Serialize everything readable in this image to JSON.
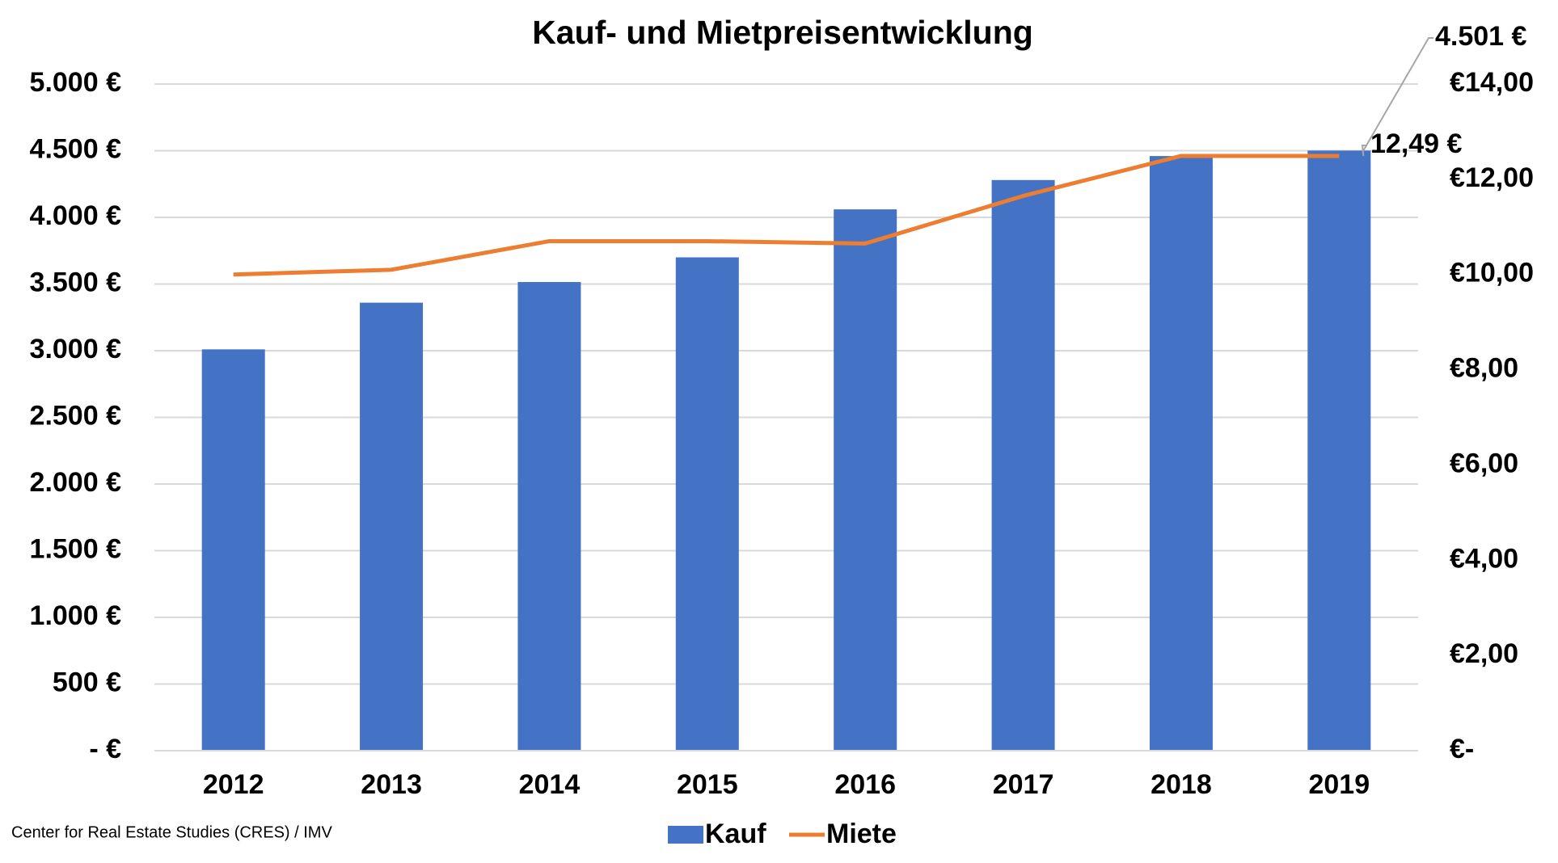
{
  "chart_data": {
    "type": "bar-line",
    "title": "Kauf- und Mietpreisentwicklung",
    "source": "Center for Real Estate Studies (CRES) / IMV",
    "categories": [
      "2012",
      "2013",
      "2014",
      "2015",
      "2016",
      "2017",
      "2018",
      "2019"
    ],
    "series": [
      {
        "name": "Kauf",
        "type": "bar",
        "color": "#4472c4",
        "values": [
          3010,
          3360,
          3515,
          3700,
          4060,
          4280,
          4460,
          4501
        ],
        "value_labels": [
          null,
          null,
          null,
          null,
          null,
          null,
          null,
          "4.501 €"
        ]
      },
      {
        "name": "Miete",
        "type": "line",
        "axis": "y2",
        "color": "#ed7d31",
        "values": [
          10.0,
          10.1,
          10.7,
          10.7,
          10.65,
          11.65,
          12.49,
          12.49
        ],
        "value_labels": [
          null,
          null,
          null,
          null,
          null,
          null,
          null,
          "12,49 €"
        ]
      }
    ],
    "ylim": [
      0,
      5000
    ],
    "yticks": [
      {
        "value": 0,
        "label": "-   €"
      },
      {
        "value": 500,
        "label": "500 €"
      },
      {
        "value": 1000,
        "label": "1.000 €"
      },
      {
        "value": 1500,
        "label": "1.500 €"
      },
      {
        "value": 2000,
        "label": "2.000 €"
      },
      {
        "value": 2500,
        "label": "2.500 €"
      },
      {
        "value": 3000,
        "label": "3.000 €"
      },
      {
        "value": 3500,
        "label": "3.500 €"
      },
      {
        "value": 4000,
        "label": "4.000 €"
      },
      {
        "value": 4500,
        "label": "4.500 €"
      },
      {
        "value": 5000,
        "label": "5.000 €"
      }
    ],
    "y2lim": [
      0,
      14
    ],
    "y2ticks": [
      {
        "value": 0,
        "label": "€-"
      },
      {
        "value": 2,
        "label": "€2,00"
      },
      {
        "value": 4,
        "label": "€4,00"
      },
      {
        "value": 6,
        "label": "€6,00"
      },
      {
        "value": 8,
        "label": "€8,00"
      },
      {
        "value": 10,
        "label": "€10,00"
      },
      {
        "value": 12,
        "label": "€12,00"
      },
      {
        "value": 14,
        "label": "€14,00"
      }
    ],
    "grid": true,
    "legend": "bottom"
  }
}
